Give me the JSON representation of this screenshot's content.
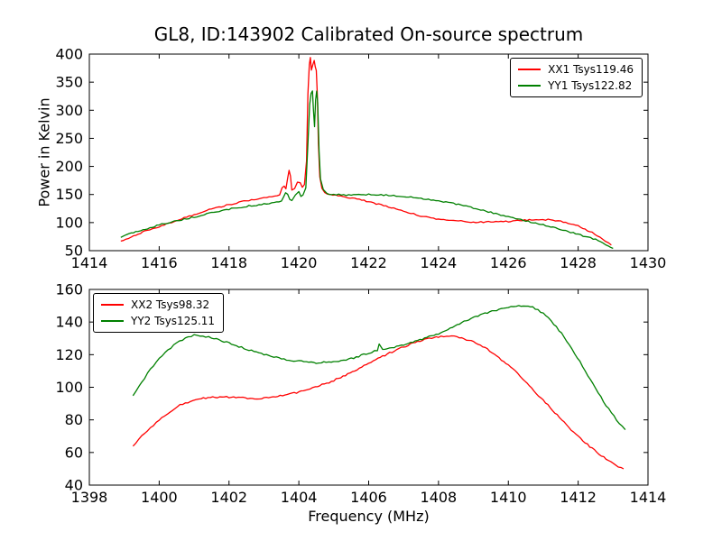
{
  "figure": {
    "background": "#ffffff",
    "text_color": "#000000"
  },
  "chart_data": [
    {
      "type": "line",
      "title": "GL8, ID:143902 Calibrated On-source spectrum",
      "xlabel": "",
      "ylabel": "Power in Kelvin",
      "xlim": [
        1414,
        1430
      ],
      "ylim": [
        50,
        400
      ],
      "xticks": [
        1414,
        1416,
        1418,
        1420,
        1422,
        1424,
        1426,
        1428,
        1430
      ],
      "yticks": [
        50,
        100,
        150,
        200,
        250,
        300,
        350,
        400
      ],
      "grid": false,
      "legend_position": "upper right",
      "series": [
        {
          "name": "XX1 Tsys119.46",
          "color": "#ff0000",
          "points": [
            [
              1414.9,
              66
            ],
            [
              1415.2,
              75
            ],
            [
              1415.6,
              85
            ],
            [
              1416,
              93
            ],
            [
              1416.5,
              104
            ],
            [
              1417,
              114
            ],
            [
              1417.5,
              124
            ],
            [
              1418,
              132
            ],
            [
              1418.5,
              139
            ],
            [
              1419,
              144
            ],
            [
              1419.3,
              147
            ],
            [
              1419.45,
              150
            ],
            [
              1419.52,
              161
            ],
            [
              1419.58,
              166
            ],
            [
              1419.63,
              159
            ],
            [
              1419.68,
              180
            ],
            [
              1419.72,
              193
            ],
            [
              1419.76,
              184
            ],
            [
              1419.8,
              158
            ],
            [
              1419.88,
              161
            ],
            [
              1419.96,
              172
            ],
            [
              1420.04,
              170
            ],
            [
              1420.1,
              163
            ],
            [
              1420.16,
              168
            ],
            [
              1420.22,
              210
            ],
            [
              1420.26,
              330
            ],
            [
              1420.3,
              381
            ],
            [
              1420.33,
              393
            ],
            [
              1420.36,
              371
            ],
            [
              1420.4,
              381
            ],
            [
              1420.44,
              389
            ],
            [
              1420.47,
              377
            ],
            [
              1420.5,
              371
            ],
            [
              1420.53,
              327
            ],
            [
              1420.56,
              240
            ],
            [
              1420.6,
              182
            ],
            [
              1420.66,
              161
            ],
            [
              1420.74,
              153
            ],
            [
              1420.9,
              150
            ],
            [
              1421.2,
              147
            ],
            [
              1421.6,
              143
            ],
            [
              1422,
              137
            ],
            [
              1422.5,
              129
            ],
            [
              1423,
              120
            ],
            [
              1423.5,
              112
            ],
            [
              1424,
              106
            ],
            [
              1424.5,
              103
            ],
            [
              1425,
              101
            ],
            [
              1425.5,
              101
            ],
            [
              1426,
              102
            ],
            [
              1426.4,
              104
            ],
            [
              1426.8,
              105
            ],
            [
              1427.2,
              105
            ],
            [
              1427.5,
              102
            ],
            [
              1428,
              94
            ],
            [
              1428.4,
              82
            ],
            [
              1428.7,
              70
            ],
            [
              1428.95,
              60
            ]
          ]
        },
        {
          "name": "YY1 Tsys122.82",
          "color": "#008000",
          "points": [
            [
              1414.9,
              74
            ],
            [
              1415.2,
              81
            ],
            [
              1415.6,
              88
            ],
            [
              1416,
              96
            ],
            [
              1416.5,
              103
            ],
            [
              1417,
              110
            ],
            [
              1417.5,
              117
            ],
            [
              1418,
              124
            ],
            [
              1418.5,
              129
            ],
            [
              1419,
              133
            ],
            [
              1419.3,
              135
            ],
            [
              1419.5,
              138
            ],
            [
              1419.56,
              146
            ],
            [
              1419.62,
              153
            ],
            [
              1419.68,
              150
            ],
            [
              1419.74,
              141
            ],
            [
              1419.8,
              139
            ],
            [
              1419.9,
              150
            ],
            [
              1420,
              155
            ],
            [
              1420.06,
              147
            ],
            [
              1420.12,
              150
            ],
            [
              1420.2,
              162
            ],
            [
              1420.26,
              240
            ],
            [
              1420.31,
              310
            ],
            [
              1420.35,
              331
            ],
            [
              1420.39,
              334
            ],
            [
              1420.42,
              298
            ],
            [
              1420.45,
              271
            ],
            [
              1420.48,
              318
            ],
            [
              1420.51,
              334
            ],
            [
              1420.54,
              312
            ],
            [
              1420.58,
              228
            ],
            [
              1420.62,
              178
            ],
            [
              1420.7,
              158
            ],
            [
              1420.8,
              152
            ],
            [
              1421,
              150
            ],
            [
              1421.5,
              149
            ],
            [
              1422,
              150
            ],
            [
              1422.5,
              149
            ],
            [
              1423,
              147
            ],
            [
              1423.5,
              143
            ],
            [
              1424,
              139
            ],
            [
              1424.5,
              133
            ],
            [
              1425,
              126
            ],
            [
              1425.5,
              118
            ],
            [
              1426,
              110
            ],
            [
              1426.5,
              103
            ],
            [
              1427,
              96
            ],
            [
              1427.5,
              88
            ],
            [
              1428,
              79
            ],
            [
              1428.5,
              70
            ],
            [
              1429,
              54
            ]
          ]
        }
      ]
    },
    {
      "type": "line",
      "title": "",
      "xlabel": "Frequency (MHz)",
      "ylabel": "",
      "xlim": [
        1398,
        1414
      ],
      "ylim": [
        40,
        160
      ],
      "xticks": [
        1398,
        1400,
        1402,
        1404,
        1406,
        1408,
        1410,
        1412,
        1414
      ],
      "yticks": [
        40,
        60,
        80,
        100,
        120,
        140,
        160
      ],
      "grid": false,
      "legend_position": "upper left",
      "series": [
        {
          "name": "XX2 Tsys98.32",
          "color": "#ff0000",
          "points": [
            [
              1399.25,
              64
            ],
            [
              1399.5,
              70
            ],
            [
              1399.75,
              75
            ],
            [
              1400,
              80
            ],
            [
              1400.3,
              85
            ],
            [
              1400.6,
              89
            ],
            [
              1400.9,
              91.5
            ],
            [
              1401.2,
              93
            ],
            [
              1401.6,
              94
            ],
            [
              1402,
              94
            ],
            [
              1402.4,
              93.5
            ],
            [
              1402.8,
              93.2
            ],
            [
              1403.2,
              93.8
            ],
            [
              1403.6,
              95
            ],
            [
              1404,
              97
            ],
            [
              1404.4,
              99.5
            ],
            [
              1404.8,
              102.5
            ],
            [
              1405.2,
              106
            ],
            [
              1405.6,
              110
            ],
            [
              1406,
              114.5
            ],
            [
              1406.4,
              119
            ],
            [
              1406.8,
              123
            ],
            [
              1407.2,
              126.5
            ],
            [
              1407.6,
              129.5
            ],
            [
              1408,
              131
            ],
            [
              1408.3,
              131.5
            ],
            [
              1408.6,
              130.5
            ],
            [
              1409,
              128
            ],
            [
              1409.4,
              123.5
            ],
            [
              1409.8,
              117
            ],
            [
              1410.2,
              110
            ],
            [
              1410.6,
              101
            ],
            [
              1411,
              92
            ],
            [
              1411.4,
              83
            ],
            [
              1411.8,
              74
            ],
            [
              1412.2,
              66
            ],
            [
              1412.6,
              59
            ],
            [
              1413,
              53
            ],
            [
              1413.3,
              50
            ]
          ]
        },
        {
          "name": "YY2 Tsys125.11",
          "color": "#008000",
          "points": [
            [
              1399.25,
              95
            ],
            [
              1399.5,
              103
            ],
            [
              1399.75,
              111
            ],
            [
              1400,
              118
            ],
            [
              1400.25,
              123
            ],
            [
              1400.5,
              127
            ],
            [
              1400.75,
              130
            ],
            [
              1401,
              132
            ],
            [
              1401.25,
              131.5
            ],
            [
              1401.5,
              130.5
            ],
            [
              1402,
              127
            ],
            [
              1402.5,
              123.5
            ],
            [
              1403,
              120
            ],
            [
              1403.5,
              117.5
            ],
            [
              1404,
              116
            ],
            [
              1404.5,
              115
            ],
            [
              1405,
              115.5
            ],
            [
              1405.5,
              117.5
            ],
            [
              1406,
              121
            ],
            [
              1406.25,
              122.5
            ],
            [
              1406.3,
              126.5
            ],
            [
              1406.4,
              123
            ],
            [
              1406.8,
              125
            ],
            [
              1407.2,
              127.5
            ],
            [
              1407.6,
              130
            ],
            [
              1408,
              133
            ],
            [
              1408.4,
              137
            ],
            [
              1408.8,
              141
            ],
            [
              1409.2,
              144.5
            ],
            [
              1409.6,
              147
            ],
            [
              1410,
              149
            ],
            [
              1410.3,
              150
            ],
            [
              1410.7,
              149
            ],
            [
              1411,
              145.5
            ],
            [
              1411.3,
              139
            ],
            [
              1411.6,
              131
            ],
            [
              1411.9,
              121
            ],
            [
              1412.2,
              110
            ],
            [
              1412.5,
              99
            ],
            [
              1412.8,
              89
            ],
            [
              1413.1,
              80
            ],
            [
              1413.35,
              74
            ]
          ]
        }
      ]
    }
  ]
}
